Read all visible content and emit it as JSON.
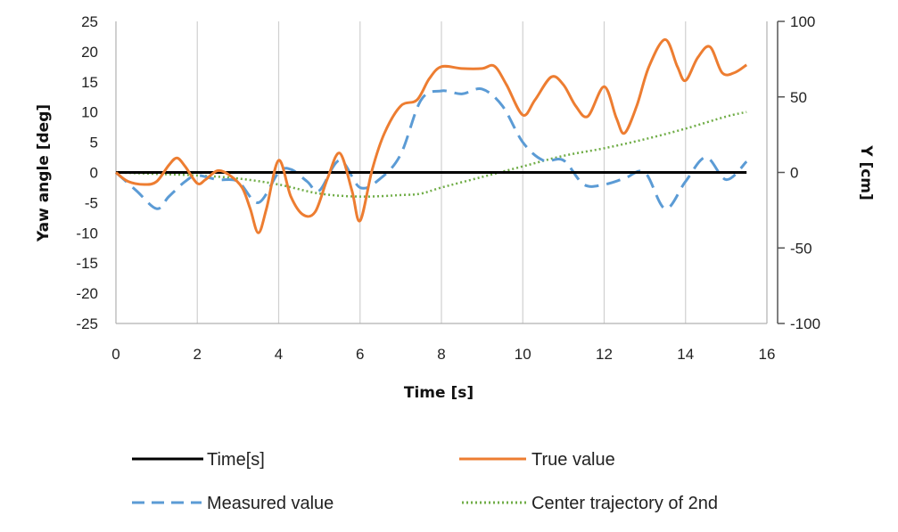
{
  "chart_data": {
    "type": "line",
    "xlabel": "Time [s]",
    "ylabel_left": "Yaw angle  [deg]",
    "ylabel_right": "Y [cm]",
    "xlim": [
      0,
      16
    ],
    "ylim_left": [
      -25,
      25
    ],
    "ylim_right": [
      -100,
      100
    ],
    "x_ticks": [
      "0",
      "2",
      "4",
      "6",
      "8",
      "10",
      "12",
      "14",
      "16"
    ],
    "y_ticks_left": [
      "25",
      "20",
      "15",
      "10",
      "5",
      "0",
      "-5",
      "-10",
      "-15",
      "-20",
      "-25"
    ],
    "y_ticks_right": [
      "100",
      "50",
      "0",
      "-50",
      "-100"
    ],
    "grid": "vertical",
    "legend_position": "bottom",
    "series": [
      {
        "name": "Time[s]",
        "axis": "left",
        "color": "#000000",
        "style": "solid",
        "x": [
          0,
          15.5
        ],
        "y": [
          0,
          0
        ]
      },
      {
        "name": "True value",
        "axis": "left",
        "color": "#ED7D31",
        "style": "solid",
        "x": [
          0,
          0.3,
          0.7,
          1.0,
          1.3,
          1.5,
          1.7,
          2.0,
          2.2,
          2.5,
          2.8,
          3.1,
          3.3,
          3.5,
          3.7,
          4.0,
          4.3,
          4.6,
          4.9,
          5.2,
          5.5,
          5.8,
          6.0,
          6.3,
          6.6,
          7.0,
          7.4,
          7.7,
          8.0,
          8.5,
          9.0,
          9.3,
          9.6,
          10.0,
          10.3,
          10.7,
          11.0,
          11.3,
          11.6,
          12.0,
          12.3,
          12.5,
          12.8,
          13.1,
          13.5,
          13.8,
          14.0,
          14.3,
          14.6,
          14.9,
          15.2,
          15.5
        ],
        "y": [
          0,
          -1.5,
          -2,
          -1.5,
          1.2,
          2.4,
          1.0,
          -1.8,
          -1.2,
          0.3,
          -0.5,
          -2.5,
          -6,
          -10,
          -6,
          2.0,
          -4,
          -7,
          -6.5,
          -1,
          3.2,
          -3,
          -8,
          0.5,
          6.5,
          11,
          12,
          15.5,
          17.5,
          17.2,
          17.2,
          17.6,
          14.5,
          9.5,
          12,
          15.8,
          14.5,
          11,
          9.3,
          14.2,
          9,
          6.5,
          11,
          17.5,
          22,
          17.5,
          15.2,
          19,
          20.8,
          16.5,
          16.5,
          17.8
        ]
      },
      {
        "name": "Measured value",
        "axis": "left",
        "color": "#5B9BD5",
        "style": "dashed",
        "x": [
          0,
          0.5,
          1.0,
          1.3,
          1.7,
          2.0,
          2.5,
          3.0,
          3.5,
          4.0,
          4.3,
          4.7,
          5.0,
          5.5,
          6.0,
          6.5,
          7.0,
          7.5,
          8.0,
          8.5,
          9.0,
          9.5,
          10.0,
          10.5,
          11.0,
          11.5,
          12.0,
          12.5,
          13.0,
          13.5,
          14.0,
          14.5,
          15.0,
          15.5
        ],
        "y": [
          0,
          -3,
          -6,
          -4,
          -1.5,
          -0.5,
          -1.2,
          -1.5,
          -5,
          0,
          0.5,
          -1.5,
          -3,
          2,
          -2.5,
          -1,
          3,
          12,
          13.5,
          13,
          13.8,
          11,
          5,
          2,
          2,
          -2,
          -2,
          -1,
          0,
          -6,
          -1.5,
          2.5,
          -1.2,
          1.8
        ]
      },
      {
        "name": "Center trajectory of 2nd",
        "axis": "right",
        "color": "#70AD47",
        "style": "dotted",
        "x": [
          0,
          1.0,
          2.0,
          3.0,
          4.0,
          5.0,
          6.0,
          7.0,
          7.5,
          8.0,
          9.0,
          10.0,
          11.0,
          12.0,
          13.0,
          14.0,
          15.0,
          15.5
        ],
        "y": [
          0,
          -1,
          -2,
          -4,
          -8,
          -14,
          -16,
          -15,
          -14,
          -10,
          -3,
          4,
          11,
          16,
          22,
          29,
          37,
          40
        ]
      }
    ]
  }
}
